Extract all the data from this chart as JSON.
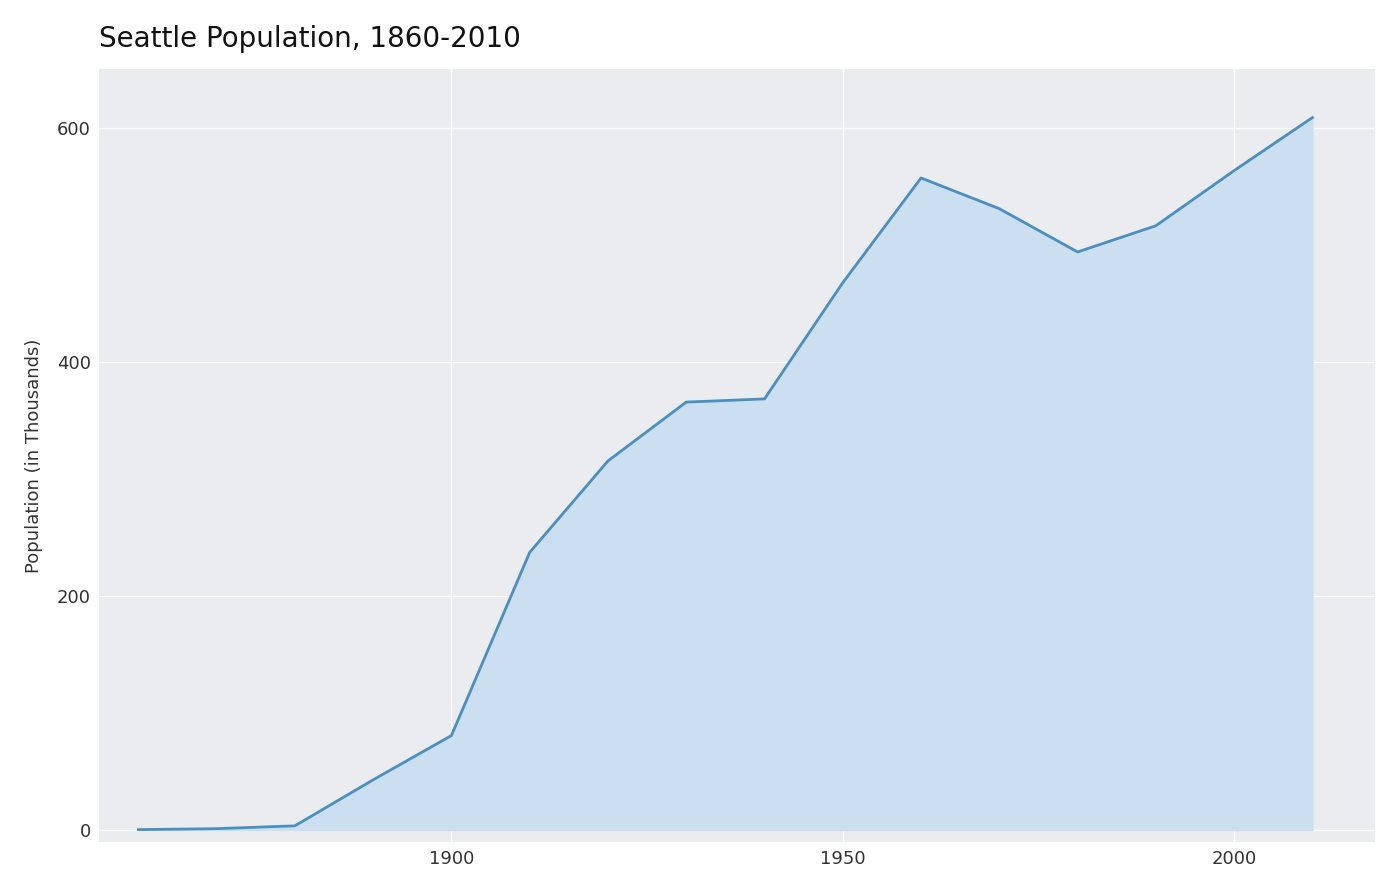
{
  "title": "Seattle Population, 1860-2010",
  "ylabel": "Population (in Thousands)",
  "years": [
    1860,
    1870,
    1880,
    1890,
    1900,
    1910,
    1920,
    1930,
    1940,
    1950,
    1960,
    1970,
    1980,
    1990,
    2000,
    2010
  ],
  "population": [
    0.302,
    1.107,
    3.533,
    42.837,
    80.671,
    237.194,
    315.312,
    365.583,
    368.302,
    467.591,
    557.087,
    530.831,
    493.846,
    516.259,
    563.374,
    608.66
  ],
  "line_color": "#4a8fc2",
  "fill_color": "#ccdff0",
  "line_width": 2.0,
  "background_color": "#ffffff",
  "panel_background": "#eaecf0",
  "grid_color": "#ffffff",
  "title_fontsize": 20,
  "label_fontsize": 13,
  "tick_fontsize": 13,
  "yticks": [
    0,
    200,
    400,
    600
  ],
  "ylim": [
    -10,
    650
  ],
  "xlim": [
    1855,
    2018
  ]
}
